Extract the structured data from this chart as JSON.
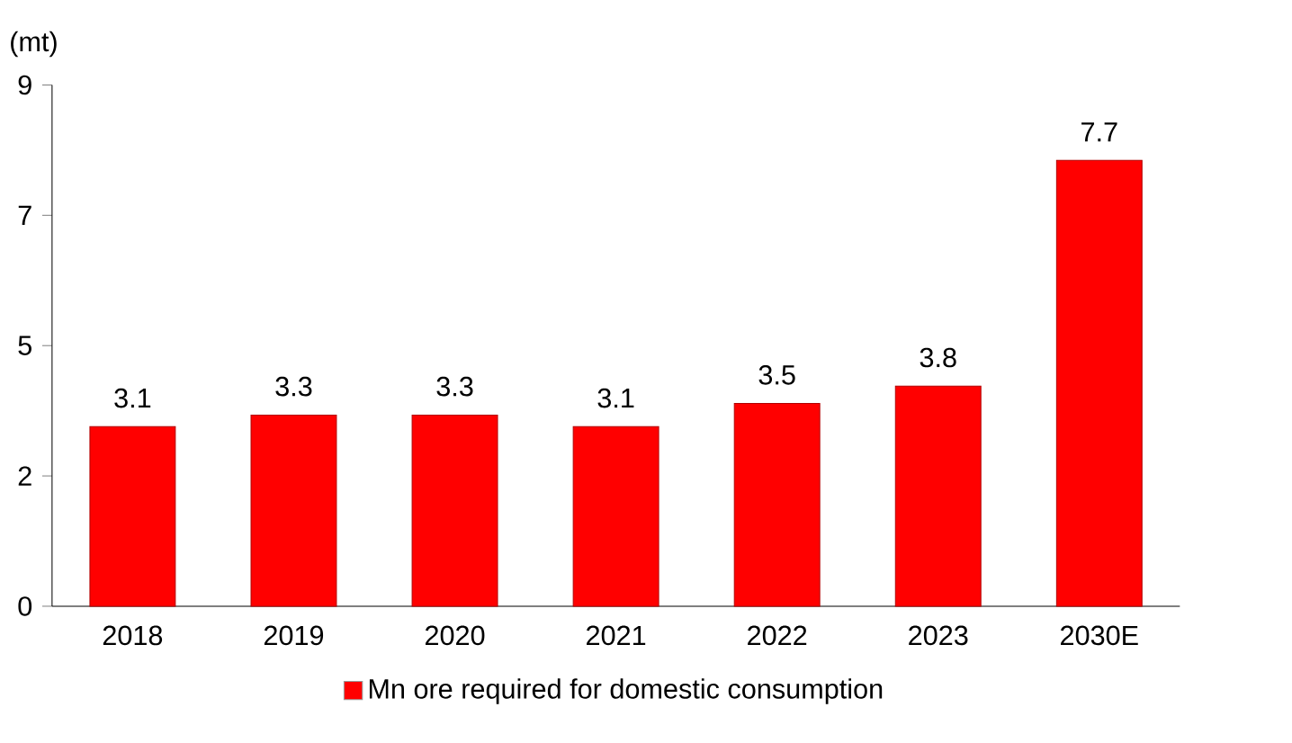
{
  "chart_data": {
    "type": "bar",
    "ylabel": "(mt)",
    "categories": [
      "2018",
      "2019",
      "2020",
      "2021",
      "2022",
      "2023",
      "2030E"
    ],
    "series": [
      {
        "name": "Mn ore required for domestic consumption",
        "color": "#ff0000",
        "values": [
          3.1,
          3.3,
          3.3,
          3.1,
          3.5,
          3.8,
          7.7
        ]
      }
    ],
    "ylim": [
      0,
      9
    ],
    "yticks": [
      0,
      {
        "value": 2.25,
        "label": "2"
      },
      {
        "value": 4.5,
        "label": "5"
      },
      {
        "value": 6.75,
        "label": "7"
      },
      9
    ],
    "data_labels": true,
    "legend": "bottom",
    "grid": false
  }
}
